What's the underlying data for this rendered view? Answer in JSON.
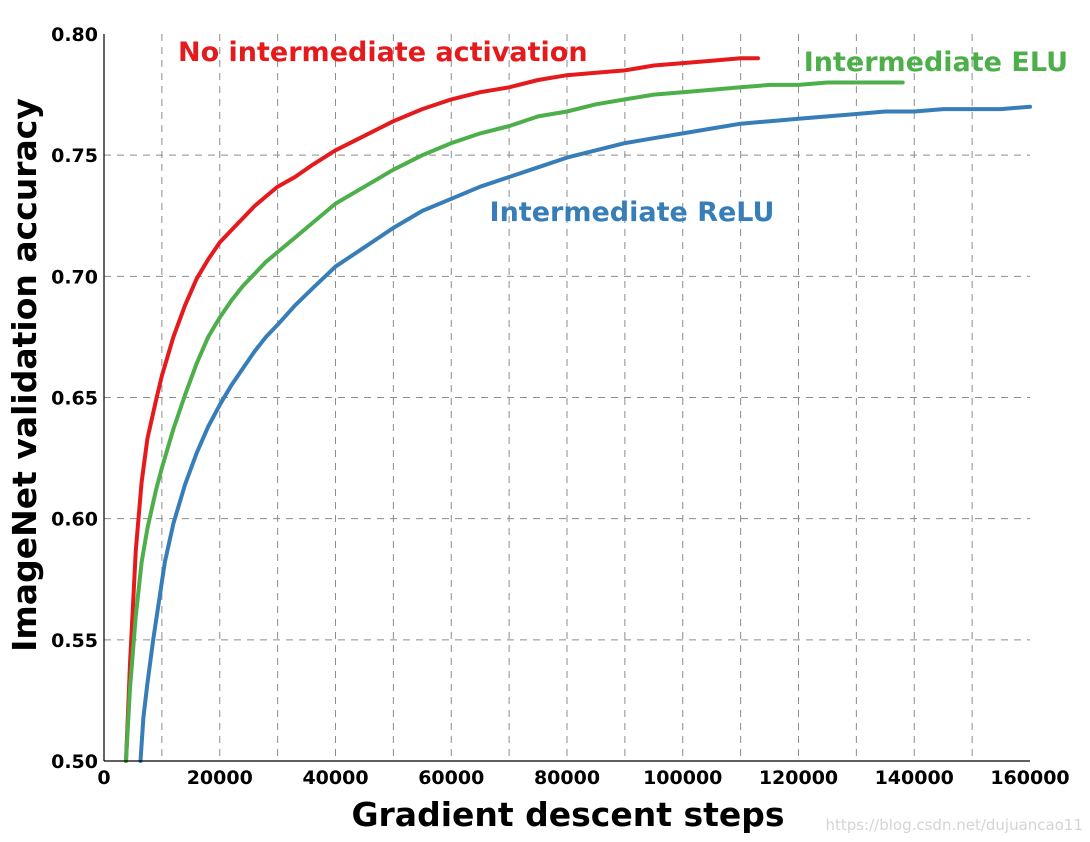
{
  "chart_data": {
    "type": "line",
    "xlabel": "Gradient descent steps",
    "ylabel": "ImageNet validation accuracy",
    "xlim": [
      0,
      160000
    ],
    "ylim": [
      0.5,
      0.8
    ],
    "xticks": [
      0,
      20000,
      40000,
      60000,
      80000,
      100000,
      120000,
      140000,
      160000
    ],
    "yticks": [
      0.5,
      0.55,
      0.6,
      0.65,
      0.7,
      0.75,
      0.8
    ],
    "xtick_labels": [
      "0",
      "20000",
      "40000",
      "60000",
      "80000",
      "100000",
      "120000",
      "140000",
      "160000"
    ],
    "ytick_labels": [
      "0.50",
      "0.55",
      "0.60",
      "0.65",
      "0.70",
      "0.75",
      "0.80"
    ],
    "grid": true,
    "series": [
      {
        "name": "No intermediate activation",
        "color": "#e41a1c",
        "x": [
          3800,
          4500,
          5500,
          6500,
          7500,
          9000,
          10000,
          12000,
          14000,
          16000,
          18000,
          20000,
          22000,
          24000,
          26000,
          28000,
          30000,
          33000,
          36000,
          40000,
          45000,
          50000,
          55000,
          60000,
          65000,
          70000,
          75000,
          80000,
          85000,
          90000,
          95000,
          100000,
          105000,
          110000,
          113000
        ],
        "y": [
          0.5,
          0.54,
          0.587,
          0.615,
          0.633,
          0.649,
          0.659,
          0.675,
          0.688,
          0.699,
          0.707,
          0.714,
          0.719,
          0.724,
          0.729,
          0.733,
          0.737,
          0.741,
          0.746,
          0.752,
          0.758,
          0.764,
          0.769,
          0.773,
          0.776,
          0.778,
          0.781,
          0.783,
          0.784,
          0.785,
          0.787,
          0.788,
          0.789,
          0.79,
          0.79
        ]
      },
      {
        "name": "Intermediate ELU",
        "color": "#4daf4a",
        "x": [
          3800,
          4500,
          5500,
          6500,
          7500,
          9000,
          10000,
          12000,
          14000,
          16000,
          18000,
          20000,
          22000,
          24000,
          26000,
          28000,
          30000,
          33000,
          36000,
          40000,
          45000,
          50000,
          55000,
          60000,
          65000,
          70000,
          75000,
          80000,
          85000,
          90000,
          95000,
          100000,
          105000,
          110000,
          115000,
          120000,
          125000,
          130000,
          135000,
          138000
        ],
        "y": [
          0.5,
          0.53,
          0.56,
          0.582,
          0.596,
          0.612,
          0.621,
          0.637,
          0.651,
          0.664,
          0.675,
          0.683,
          0.69,
          0.696,
          0.701,
          0.706,
          0.71,
          0.716,
          0.722,
          0.73,
          0.737,
          0.744,
          0.75,
          0.755,
          0.759,
          0.762,
          0.766,
          0.768,
          0.771,
          0.773,
          0.775,
          0.776,
          0.777,
          0.778,
          0.779,
          0.779,
          0.78,
          0.78,
          0.78,
          0.78
        ]
      },
      {
        "name": "Intermediate ReLU",
        "color": "#377eb8",
        "x": [
          6300,
          6800,
          7500,
          8500,
          9500,
          10500,
          12000,
          14000,
          16000,
          18000,
          20000,
          22000,
          24000,
          26000,
          28000,
          30000,
          33000,
          36000,
          40000,
          45000,
          50000,
          55000,
          60000,
          65000,
          70000,
          75000,
          80000,
          85000,
          90000,
          95000,
          100000,
          105000,
          110000,
          115000,
          120000,
          125000,
          130000,
          135000,
          140000,
          145000,
          150000,
          155000,
          160000
        ],
        "y": [
          0.5,
          0.518,
          0.532,
          0.55,
          0.566,
          0.582,
          0.598,
          0.614,
          0.627,
          0.638,
          0.647,
          0.655,
          0.662,
          0.669,
          0.675,
          0.68,
          0.688,
          0.695,
          0.704,
          0.712,
          0.72,
          0.727,
          0.732,
          0.737,
          0.741,
          0.745,
          0.749,
          0.752,
          0.755,
          0.757,
          0.759,
          0.761,
          0.763,
          0.764,
          0.765,
          0.766,
          0.767,
          0.768,
          0.768,
          0.769,
          0.769,
          0.769,
          0.77
        ]
      }
    ],
    "annotations": [
      {
        "text": "No intermediate activation",
        "series": 0
      },
      {
        "text": "Intermediate ELU",
        "series": 1
      },
      {
        "text": "Intermediate ReLU",
        "series": 2
      }
    ]
  },
  "watermark": "https://blog.csdn.net/dujuancao11"
}
